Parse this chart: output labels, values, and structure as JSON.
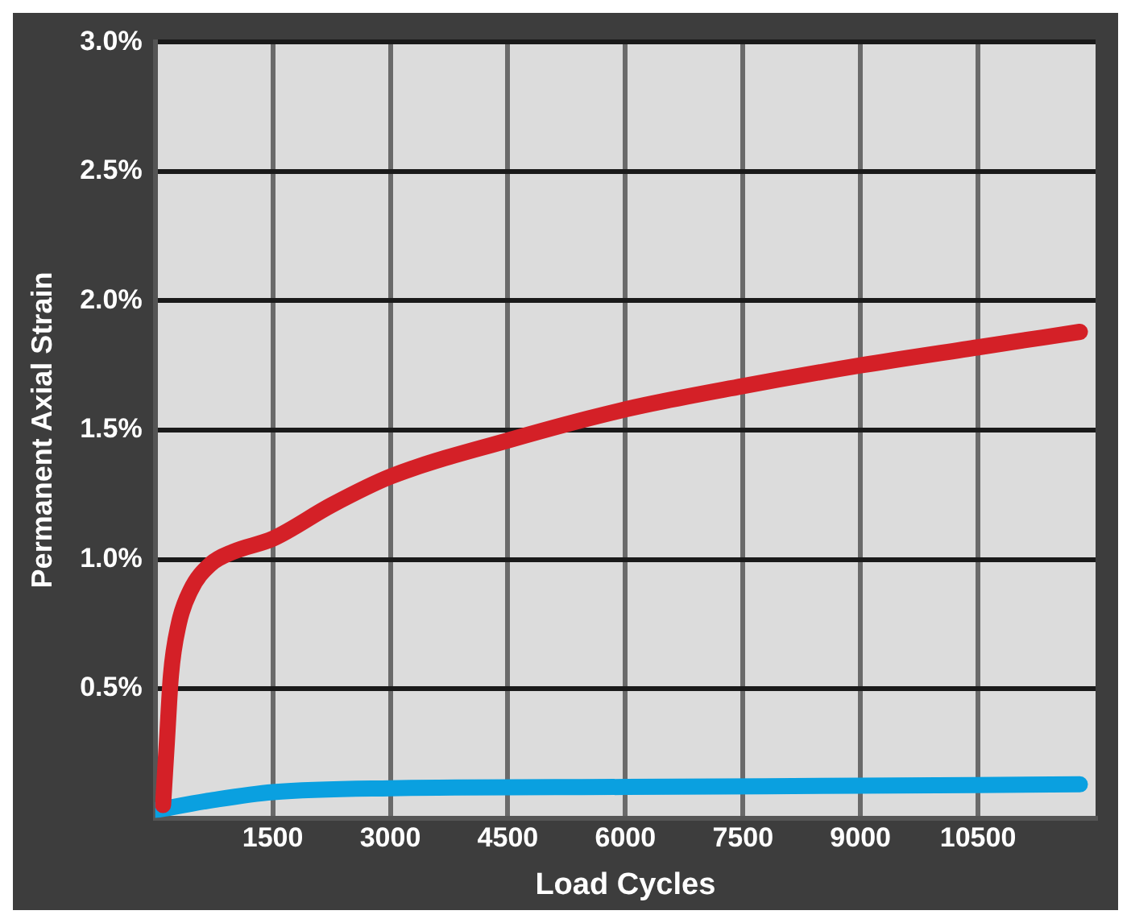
{
  "chart_data": {
    "type": "line",
    "xlabel": "Load Cycles",
    "ylabel": "Permanent Axial Strain",
    "xlim": [
      0,
      12000
    ],
    "xticks": [
      1500,
      3000,
      4500,
      6000,
      7500,
      9000,
      10500
    ],
    "ylim": [
      0,
      3
    ],
    "yticks": [
      {
        "value": 0.5,
        "label": "0.5%"
      },
      {
        "value": 1,
        "label": "1.0%"
      },
      {
        "value": 1.5,
        "label": "1.5%"
      },
      {
        "value": 2,
        "label": "2.0%"
      },
      {
        "value": 2.5,
        "label": "2.5%"
      },
      {
        "value": 3,
        "label": "3.0%"
      }
    ],
    "grid": true,
    "legend": false,
    "marker": "none",
    "line_style": "solid",
    "series": [
      {
        "color": "#d42027",
        "x": [
          100,
          150,
          200,
          300,
          450,
          700,
          1000,
          1500,
          2250,
          3000,
          4500,
          6000,
          7500,
          9000,
          10500,
          11800
        ],
        "values": [
          0.05,
          0.3,
          0.55,
          0.75,
          0.88,
          0.98,
          1.03,
          1.08,
          1.21,
          1.32,
          1.46,
          1.58,
          1.67,
          1.75,
          1.82,
          1.88
        ]
      },
      {
        "color": "#0aa0e0",
        "x": [
          0,
          750,
          1500,
          3000,
          6000,
          9000,
          11800
        ],
        "values": [
          0.03,
          0.07,
          0.1,
          0.115,
          0.12,
          0.125,
          0.13
        ]
      }
    ]
  }
}
